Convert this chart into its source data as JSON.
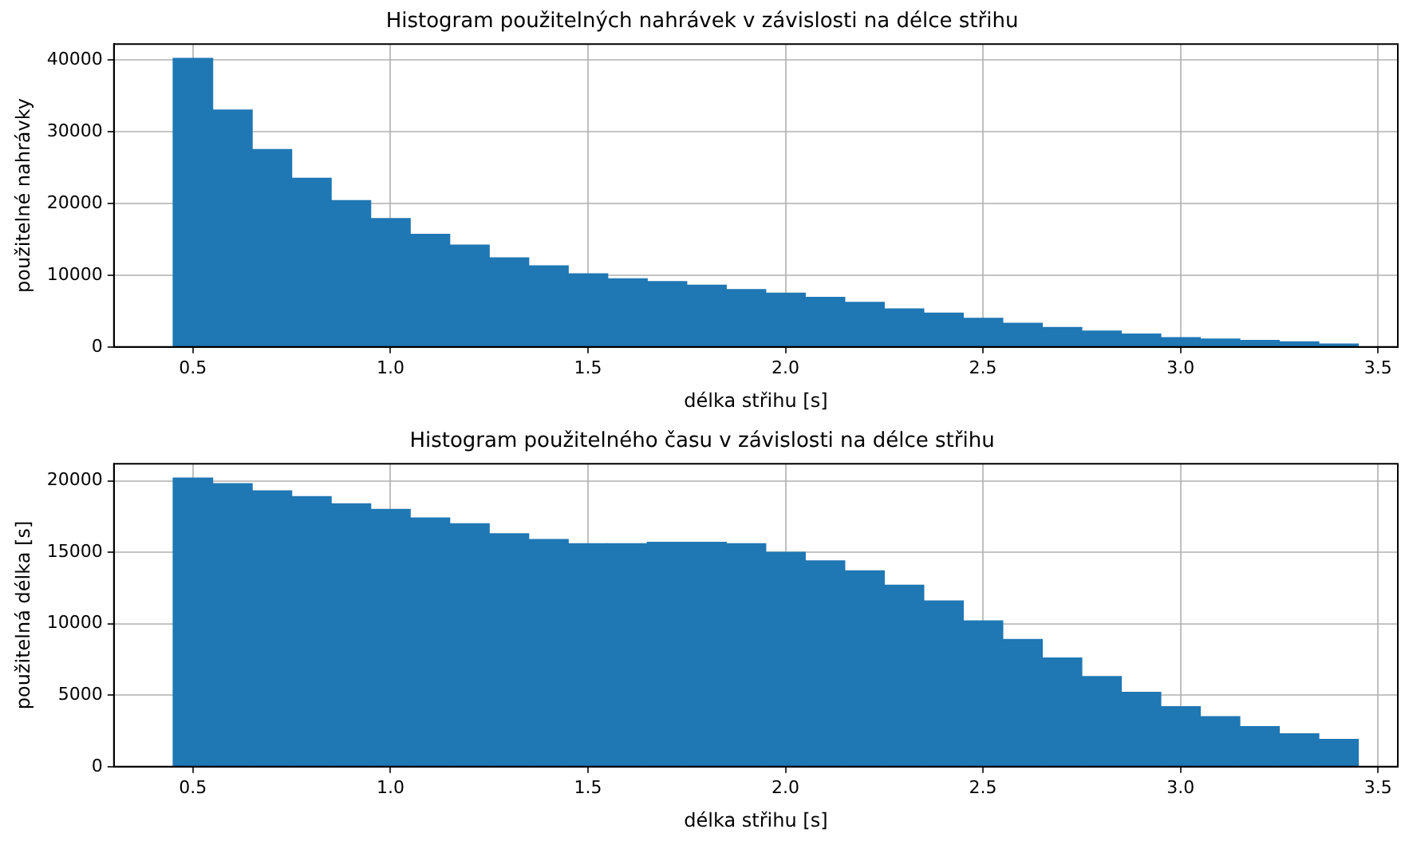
{
  "chart_data": [
    {
      "type": "histogram",
      "title": "Histogram použitelných nahrávek v závislosti na délce střihu",
      "xlabel": "délka střihu [s]",
      "ylabel": "použitelné nahrávky",
      "color": "#1f77b4",
      "bins": [
        0.45,
        0.55,
        0.65,
        0.75,
        0.85,
        0.95,
        1.05,
        1.15,
        1.25,
        1.35,
        1.45,
        1.55,
        1.65,
        1.75,
        1.85,
        1.95,
        2.05,
        2.15,
        2.25,
        2.35,
        2.45,
        2.55,
        2.65,
        2.75,
        2.85,
        2.95,
        3.05,
        3.15,
        3.25,
        3.35,
        3.45
      ],
      "values": [
        40200,
        33000,
        27500,
        23500,
        20400,
        17900,
        15700,
        14200,
        12400,
        11300,
        10200,
        9500,
        9100,
        8600,
        8000,
        7500,
        6900,
        6200,
        5300,
        4700,
        4000,
        3300,
        2700,
        2200,
        1800,
        1300,
        1100,
        900,
        700,
        400
      ],
      "xlim": [
        0.3,
        3.55
      ],
      "xticks": [
        0.5,
        {
          "value": 1,
          "label": "1.0"
        },
        1.5,
        {
          "value": 2,
          "label": "2.0"
        },
        2.5,
        {
          "value": 3,
          "label": "3.0"
        },
        3.5
      ],
      "ylim": [
        0,
        42200
      ],
      "yticks": [
        0,
        10000,
        20000,
        30000,
        40000
      ],
      "grid": true
    },
    {
      "type": "histogram",
      "title": "Histogram použitelného času v závislosti na délce střihu",
      "xlabel": "délka střihu [s]",
      "ylabel": "použitelná délka [s]",
      "color": "#1f77b4",
      "bins": [
        0.45,
        0.55,
        0.65,
        0.75,
        0.85,
        0.95,
        1.05,
        1.15,
        1.25,
        1.35,
        1.45,
        1.55,
        1.65,
        1.75,
        1.85,
        1.95,
        2.05,
        2.15,
        2.25,
        2.35,
        2.45,
        2.55,
        2.65,
        2.75,
        2.85,
        2.95,
        3.05,
        3.15,
        3.25,
        3.35,
        3.45
      ],
      "values": [
        20200,
        19800,
        19300,
        18900,
        18400,
        18000,
        17400,
        17000,
        16300,
        15900,
        15600,
        15600,
        15700,
        15700,
        15600,
        15000,
        14400,
        13700,
        12700,
        11600,
        10200,
        8900,
        7600,
        6300,
        5200,
        4200,
        3500,
        2800,
        2300,
        1900
      ],
      "xlim": [
        0.3,
        3.55
      ],
      "xticks": [
        0.5,
        {
          "value": 1,
          "label": "1.0"
        },
        1.5,
        {
          "value": 2,
          "label": "2.0"
        },
        2.5,
        {
          "value": 3,
          "label": "3.0"
        },
        3.5
      ],
      "ylim": [
        0,
        21200
      ],
      "yticks": [
        0,
        5000,
        10000,
        15000,
        20000
      ],
      "grid": true
    }
  ]
}
